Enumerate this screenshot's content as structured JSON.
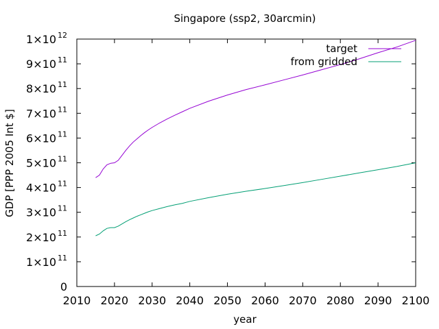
{
  "chart_data": {
    "type": "line",
    "title": "Singapore (ssp2, 30arcmin)",
    "xlabel": "year",
    "ylabel": "GDP [PPP 2005 Int $]",
    "xlim": [
      2010,
      2100
    ],
    "ylim": [
      0,
      1000000000000
    ],
    "xticks": [
      {
        "value": 2010,
        "label": "2010"
      },
      {
        "value": 2020,
        "label": "2020"
      },
      {
        "value": 2030,
        "label": "2030"
      },
      {
        "value": 2040,
        "label": "2040"
      },
      {
        "value": 2050,
        "label": "2050"
      },
      {
        "value": 2060,
        "label": "2060"
      },
      {
        "value": 2070,
        "label": "2070"
      },
      {
        "value": 2080,
        "label": "2080"
      },
      {
        "value": 2090,
        "label": "2090"
      },
      {
        "value": 2100,
        "label": "2100"
      }
    ],
    "yticks": [
      {
        "value": 0,
        "mantissa": "0",
        "base": "",
        "exp": ""
      },
      {
        "value": 100000000000,
        "mantissa": "1",
        "base": "×10",
        "exp": "11"
      },
      {
        "value": 200000000000,
        "mantissa": "2",
        "base": "×10",
        "exp": "11"
      },
      {
        "value": 300000000000,
        "mantissa": "3",
        "base": "×10",
        "exp": "11"
      },
      {
        "value": 400000000000,
        "mantissa": "4",
        "base": "×10",
        "exp": "11"
      },
      {
        "value": 500000000000,
        "mantissa": "5",
        "base": "×10",
        "exp": "11"
      },
      {
        "value": 600000000000,
        "mantissa": "6",
        "base": "×10",
        "exp": "11"
      },
      {
        "value": 700000000000,
        "mantissa": "7",
        "base": "×10",
        "exp": "11"
      },
      {
        "value": 800000000000,
        "mantissa": "8",
        "base": "×10",
        "exp": "11"
      },
      {
        "value": 900000000000,
        "mantissa": "9",
        "base": "×10",
        "exp": "11"
      },
      {
        "value": 1000000000000,
        "mantissa": "1",
        "base": "×10",
        "exp": "12"
      }
    ],
    "grid": false,
    "legend_position": "top-right",
    "series": [
      {
        "name": "target",
        "color": "#9400d3",
        "x": [
          2015,
          2016,
          2017,
          2018,
          2019,
          2020,
          2021,
          2022,
          2023,
          2024,
          2025,
          2026,
          2027,
          2028,
          2029,
          2030,
          2032,
          2034,
          2036,
          2038,
          2040,
          2045,
          2050,
          2055,
          2060,
          2065,
          2070,
          2075,
          2080,
          2085,
          2090,
          2095,
          2100
        ],
        "y": [
          440000000000,
          450000000000,
          475000000000,
          492000000000,
          498000000000,
          500000000000,
          510000000000,
          530000000000,
          550000000000,
          568000000000,
          584000000000,
          597000000000,
          610000000000,
          622000000000,
          633000000000,
          643000000000,
          661000000000,
          677000000000,
          692000000000,
          706000000000,
          720000000000,
          749000000000,
          774000000000,
          796000000000,
          815000000000,
          835000000000,
          855000000000,
          876000000000,
          897000000000,
          920000000000,
          945000000000,
          968000000000,
          995000000000
        ]
      },
      {
        "name": "from gridded",
        "color": "#009e73",
        "x": [
          2015,
          2016,
          2017,
          2018,
          2019,
          2020,
          2021,
          2022,
          2023,
          2024,
          2025,
          2026,
          2027,
          2028,
          2029,
          2030,
          2032,
          2034,
          2036,
          2038,
          2040,
          2045,
          2050,
          2055,
          2060,
          2065,
          2070,
          2075,
          2080,
          2085,
          2090,
          2095,
          2100
        ],
        "y": [
          205000000000,
          212000000000,
          225000000000,
          235000000000,
          238000000000,
          238000000000,
          244000000000,
          253000000000,
          262000000000,
          270000000000,
          277000000000,
          284000000000,
          290000000000,
          296000000000,
          302000000000,
          307000000000,
          315000000000,
          323000000000,
          330000000000,
          336000000000,
          344000000000,
          359000000000,
          373000000000,
          385000000000,
          396000000000,
          408000000000,
          420000000000,
          433000000000,
          446000000000,
          459000000000,
          472000000000,
          485000000000,
          500000000000
        ]
      }
    ]
  }
}
